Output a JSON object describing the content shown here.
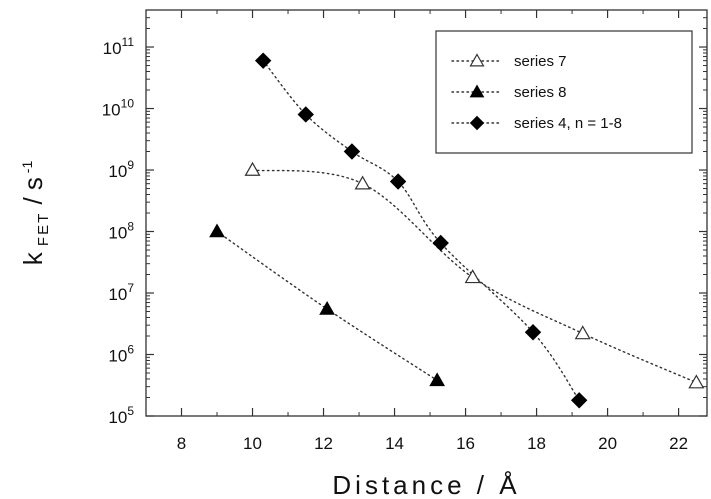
{
  "chart_data": {
    "type": "scatter",
    "xlabel": "Distance / Å",
    "ylabel_main": "k",
    "ylabel_subscript": "FET",
    "ylabel_unit": " / s",
    "ylabel_unit_sup": "-1",
    "xlim": [
      7,
      22.8
    ],
    "ylim": [
      100000,
      400000000000
    ],
    "yscale": "log",
    "grid": false,
    "legend_position": "top-right",
    "x_ticks": [
      8,
      10,
      12,
      14,
      16,
      18,
      20,
      22
    ],
    "x_tick_labels": [
      "8",
      "10",
      "12",
      "14",
      "16",
      "18",
      "20",
      "22"
    ],
    "y_ticks": [
      {
        "value": 100000,
        "base": "10",
        "exp": "5"
      },
      {
        "value": 1000000,
        "base": "10",
        "exp": "6"
      },
      {
        "value": 10000000,
        "base": "10",
        "exp": "7"
      },
      {
        "value": 100000000,
        "base": "10",
        "exp": "8"
      },
      {
        "value": 1000000000,
        "base": "10",
        "exp": "9"
      },
      {
        "value": 10000000000,
        "base": "10",
        "exp": "10"
      },
      {
        "value": 100000000000,
        "base": "10",
        "exp": "11"
      }
    ],
    "series": [
      {
        "name": "series 7",
        "marker": "open-triangle",
        "x": [
          10.0,
          13.1,
          16.2,
          19.3,
          22.5
        ],
        "y": [
          1000000000,
          600000000,
          18000000,
          2200000,
          350000
        ]
      },
      {
        "name": "series 8",
        "marker": "filled-triangle",
        "x": [
          9.0,
          12.1,
          15.2
        ],
        "y": [
          100000000,
          5500000,
          380000
        ]
      },
      {
        "name": "series 4, n = 1-8",
        "marker": "filled-diamond",
        "x": [
          10.3,
          11.5,
          12.8,
          14.1,
          15.3,
          17.9,
          19.2
        ],
        "y": [
          60000000000,
          8000000000,
          2000000000,
          650000000,
          65000000,
          2300000,
          180000
        ]
      }
    ]
  }
}
